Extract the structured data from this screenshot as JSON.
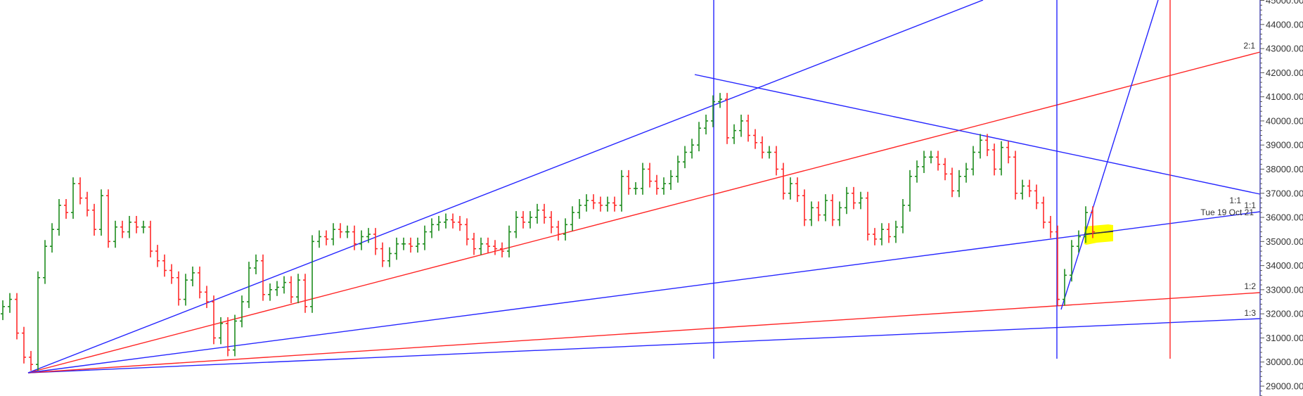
{
  "chart_data": {
    "type": "ohlc",
    "title": "",
    "xlabel": "",
    "ylabel": "",
    "ylim": [
      28600,
      45000
    ],
    "grid": false,
    "close": [
      32300,
      32600,
      31200,
      30200,
      29900,
      33500,
      34800,
      35500,
      36500,
      36200,
      37400,
      36800,
      36300,
      35500,
      36900,
      35000,
      35600,
      35400,
      35800,
      35600,
      35600,
      34600,
      34200,
      33800,
      33500,
      32600,
      33400,
      33700,
      32900,
      32500,
      31000,
      31600,
      30500,
      31700,
      32500,
      33900,
      34200,
      32800,
      33000,
      33100,
      33300,
      32700,
      33400,
      32300,
      35000,
      35200,
      35100,
      35500,
      35400,
      35400,
      34900,
      35200,
      35300,
      34700,
      34200,
      34500,
      34900,
      34900,
      34800,
      34900,
      35400,
      35700,
      35800,
      35900,
      35800,
      35700,
      35100,
      34700,
      34900,
      34800,
      34700,
      34600,
      35400,
      36000,
      35800,
      36000,
      36300,
      36000,
      35600,
      35300,
      35700,
      36200,
      36500,
      36700,
      36600,
      36500,
      36600,
      36500,
      37700,
      37200,
      37200,
      38000,
      37500,
      37200,
      37400,
      37700,
      38300,
      38700,
      39000,
      39700,
      40000,
      40800,
      40900,
      39300,
      39600,
      40000,
      39400,
      39100,
      38700,
      38700,
      38000,
      37000,
      37400,
      36900,
      35900,
      36400,
      36100,
      36700,
      35900,
      36400,
      37000,
      36600,
      36800,
      35300,
      35100,
      35500,
      35200,
      35600,
      36500,
      37700,
      38100,
      38500,
      38500,
      38200,
      37800,
      37100,
      37700,
      38000,
      38700,
      39200,
      38800,
      38000,
      38900,
      38500,
      37000,
      37300,
      37100,
      36600,
      35800,
      35400,
      32600,
      33600,
      34800,
      35200,
      36200,
      35400
    ],
    "y_ticks": [
      45000,
      44000,
      43000,
      42000,
      41000,
      40000,
      39000,
      38000,
      37000,
      36000,
      35000,
      34000,
      33000,
      32000,
      31000,
      30000,
      29000
    ],
    "y_tick_labels": [
      "45000.00",
      "44000.00",
      "43000.00",
      "42000.00",
      "41000.00",
      "40000.00",
      "39000.00",
      "38000.00",
      "37000.00",
      "36000.00",
      "35000.00",
      "34000.00",
      "33000.00",
      "32000.00",
      "31000.00",
      "30000.00",
      "29000.00"
    ],
    "annotations": {
      "fan_2_1": "2:1",
      "fan_1_1_a": "1:1",
      "fan_1_1_b": "1:1",
      "date_label": "Tue 19 Oct 21",
      "fan_1_2": "1:2",
      "fan_1_3": "1:3"
    },
    "colors": {
      "up_bar": "#1e8c1e",
      "down_bar": "#ff2a2a",
      "blue_line": "#2525ff",
      "red_line": "#ff2525",
      "highlight": "#ffff00",
      "axis": "#4a4ab0"
    }
  }
}
